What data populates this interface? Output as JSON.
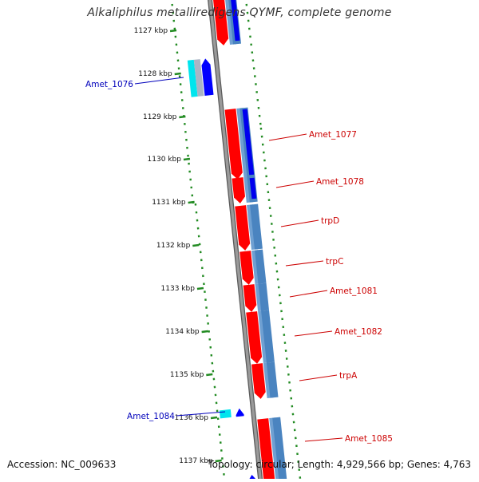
{
  "header": {
    "title": "Alkaliphilus metalliredigens QYMF, complete genome"
  },
  "footer": {
    "accession": "Accession: NC_009633",
    "topology": "Topology: circular; Length: 4,929,566 bp; Genes: 4,763"
  },
  "colors": {
    "forward_gene": "#ff0000",
    "forward_cds_dark": "#0000ee",
    "forward_cds_light": "#4a84c0",
    "reverse_gene": "#00e5ee",
    "reverse_cds": "#0000ff",
    "backbone": "#808080",
    "tick": "#228b22",
    "forward_label": "#cc0000",
    "reverse_label": "#0000bb"
  },
  "scale": {
    "unit": "kbp",
    "ticks": [
      {
        "label": "1127 kbp"
      },
      {
        "label": "1128 kbp"
      },
      {
        "label": "1129 kbp"
      },
      {
        "label": "1130 kbp"
      },
      {
        "label": "1131 kbp"
      },
      {
        "label": "1132 kbp"
      },
      {
        "label": "1133 kbp"
      },
      {
        "label": "1134 kbp"
      },
      {
        "label": "1135 kbp"
      },
      {
        "label": "1136 kbp"
      },
      {
        "label": "1137 kbp"
      }
    ]
  },
  "genes": [
    {
      "name": "Amet_1076",
      "strand": "reverse"
    },
    {
      "name": "Amet_1077",
      "strand": "forward"
    },
    {
      "name": "Amet_1078",
      "strand": "forward"
    },
    {
      "name": "trpD",
      "strand": "forward"
    },
    {
      "name": "trpC",
      "strand": "forward"
    },
    {
      "name": "Amet_1081",
      "strand": "forward"
    },
    {
      "name": "Amet_1082",
      "strand": "forward"
    },
    {
      "name": "trpA",
      "strand": "forward"
    },
    {
      "name": "Amet_1084",
      "strand": "reverse"
    },
    {
      "name": "Amet_1085",
      "strand": "forward"
    }
  ]
}
